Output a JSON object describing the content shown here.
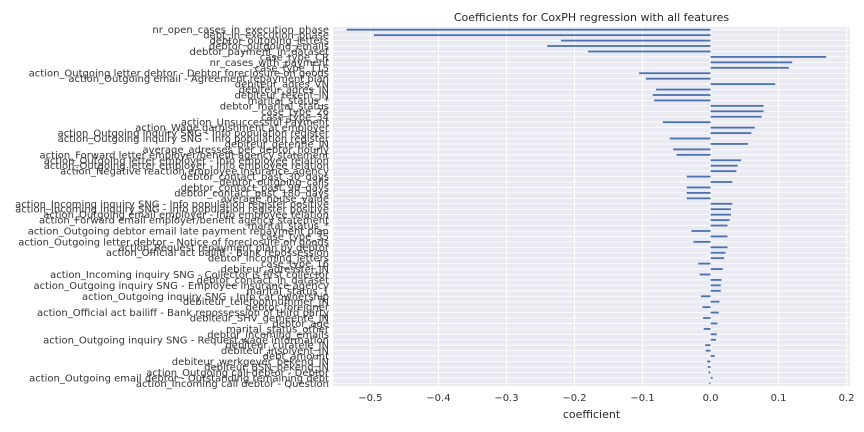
{
  "chart_data": {
    "type": "bar",
    "orientation": "horizontal",
    "title": "Coefficients for CoxPH regression with all features",
    "xlabel": "coefficient",
    "ylabel": "",
    "xlim": [
      -0.555,
      0.205
    ],
    "xticks": [
      -0.5,
      -0.4,
      -0.3,
      -0.2,
      -0.1,
      0.0,
      0.1,
      0.2
    ],
    "xtick_labels": [
      "−0.5",
      "−0.4",
      "−0.3",
      "−0.2",
      "−0.1",
      "0.0",
      "0.1",
      "0.2"
    ],
    "grid": true,
    "colors": {
      "bar": "#4c72b0",
      "plot_bg": "#eaeaf2",
      "grid": "#ffffff"
    },
    "categories": [
      "nr_open_cases_in_execution_phase",
      "debt_in_execution_phase",
      "debtor_outgoing_letters",
      "debtor_outgoing_emails",
      "debtor_payment_in_dataset",
      "case_type_CR",
      "nr_cases_with_payment",
      "case_type_115",
      "action_Outgoing letter debtor - Debtor foreclosure on goods",
      "action_Outgoing email - Agreement repayment plan",
      "debiteur_adres_VN",
      "debiteur_adres_IN",
      "debiteur_tekent_JN",
      "marital_status_*",
      "debtor_marital_status",
      "case_type_26",
      "case_type_34",
      "action_Unsuccessful Payment",
      "action_Wage garnishment at employer",
      "action_Outgoing inquiry SNG - Info population register",
      "action_Outgoing inquiry SNG - Info population register",
      "debiteur_detentie_JN",
      "average_adresses_per_debtor_hourly",
      "action_Forward letter employer/benefit agency statement",
      "action_Outgoing letter employer - Info employee relation",
      "action_Outgoing letter employer - Info employee relation",
      "action_Negative reaction employee insurance agency",
      "debtor_contact_past_30_days",
      "debtor_outgoing_calls",
      "debtor_contact_past_90_days",
      "debtor_contact_past_180_days",
      "average_house_value",
      "action_Incoming inquiry SNG - Info population register positive",
      "action_Incoming inquiry SNG - Info population register positive",
      "action_Outgoing email employer - Info employee relation",
      "action_Forward email employer/benefit agency statement",
      "marital_status_*",
      "action_Outgoing debtor email late payment repayment plan",
      "case_type_35",
      "action_Outgoing letter debtor - Notice of foreclosure on goods",
      "action_Request repayment plan by debtor",
      "action_Official act bailiff - Bank repossession",
      "debtor_incoming_letters",
      "case_type_16",
      "debiteur_adresstel_JN",
      "action_Incoming inquiry SNG - Collector is first collector",
      "debtor_contact_in_dataset",
      "action_Outgoing inquiry SNG - Employee insurance agency",
      "marital_status_1",
      "action_Outgoing inquiry SNG - Info car ownership",
      "debiteur_telefoonnummer_JN",
      "debtor_foreigner",
      "action_Official act bailiff - Bank repossession of third party",
      "debiteur_SHV_gemeente_JN",
      "debtor_age",
      "marital_status_other",
      "debtor_incoming_emails",
      "action_Outgoing inquiry SNG - Request wage information",
      "debiteur_curatele_JN",
      "debiteur_insolvent_JN",
      "debt_amount",
      "debiteur_werkgever_bekend_JN",
      "debiteur_BSN_bekend_JN",
      "action_Outgoing call debtor - Debtor",
      "action_Outgoing email debtor - Outstanding remaining debt",
      "action_Incoming call debtor - Question"
    ],
    "values": [
      -0.535,
      -0.495,
      -0.22,
      -0.24,
      -0.18,
      0.17,
      0.12,
      0.115,
      -0.105,
      -0.095,
      0.095,
      -0.08,
      -0.085,
      -0.083,
      0.078,
      0.078,
      0.075,
      -0.07,
      0.065,
      0.06,
      -0.06,
      0.055,
      -0.055,
      -0.05,
      0.045,
      0.04,
      0.038,
      -0.035,
      0.032,
      -0.035,
      -0.035,
      -0.035,
      0.032,
      0.03,
      0.03,
      0.028,
      0.025,
      -0.028,
      0.025,
      -0.025,
      0.025,
      0.022,
      0.02,
      -0.018,
      0.018,
      -0.016,
      0.016,
      0.015,
      0.015,
      -0.014,
      0.013,
      -0.012,
      0.012,
      -0.011,
      0.01,
      -0.01,
      0.009,
      0.008,
      -0.008,
      -0.007,
      0.006,
      -0.005,
      -0.004,
      -0.003,
      0.003,
      -0.002
    ],
    "label_indices": [
      0,
      1,
      2,
      3,
      4,
      5,
      6,
      7,
      8,
      9,
      10,
      11,
      12,
      13,
      14,
      15,
      16,
      17,
      18,
      19,
      20,
      21,
      22,
      23,
      24,
      25,
      26,
      27,
      28,
      29,
      30,
      31,
      32,
      33,
      34,
      35,
      36,
      37,
      38,
      39,
      40,
      41,
      42,
      43,
      44,
      45,
      46,
      47,
      48,
      49,
      50,
      51,
      52,
      53,
      54,
      55,
      56,
      57,
      58,
      59,
      60,
      61,
      62,
      63,
      64,
      65
    ]
  }
}
